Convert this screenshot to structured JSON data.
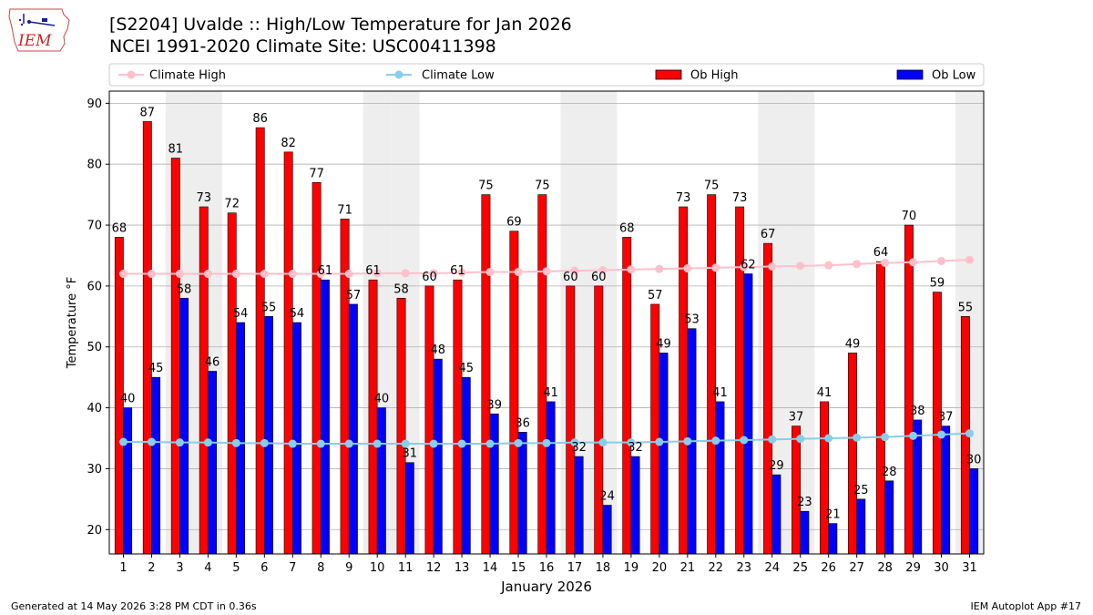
{
  "header": {
    "title_line1": "[S2204] Uvalde :: High/Low Temperature for Jan 2026",
    "title_line2": "NCEI 1991-2020 Climate Site: USC00411398",
    "logo_text": "IEM"
  },
  "footer": {
    "generated": "Generated at 14 May 2026 3:28 PM CDT in 0.36s",
    "app": "IEM Autoplot App #17"
  },
  "colors": {
    "ob_high": "#ff0000",
    "ob_low": "#0000ff",
    "climate_high": "#ffc0cb",
    "climate_low": "#87ceeb",
    "weekend_shade": "#eeeeee",
    "grid": "#b0b0b0"
  },
  "chart_data": {
    "type": "bar",
    "xlabel": "January 2026",
    "ylabel": "Temperature °F",
    "ylim": [
      16,
      92
    ],
    "yticks": [
      20,
      30,
      40,
      50,
      60,
      70,
      80,
      90
    ],
    "grid": "horizontal",
    "legend_position": "top",
    "categories": [
      "1",
      "2",
      "3",
      "4",
      "5",
      "6",
      "7",
      "8",
      "9",
      "10",
      "11",
      "12",
      "13",
      "14",
      "15",
      "16",
      "17",
      "18",
      "19",
      "20",
      "21",
      "22",
      "23",
      "24",
      "25",
      "26",
      "27",
      "28",
      "29",
      "30",
      "31"
    ],
    "shaded_days": [
      3,
      4,
      10,
      11,
      17,
      18,
      24,
      25,
      31
    ],
    "series": [
      {
        "name": "Ob High",
        "kind": "bar",
        "values": [
          68,
          87,
          81,
          73,
          72,
          86,
          82,
          77,
          71,
          61,
          58,
          60,
          61,
          75,
          69,
          75,
          60,
          60,
          68,
          57,
          73,
          75,
          73,
          67,
          37,
          41,
          49,
          64,
          70,
          59,
          55
        ]
      },
      {
        "name": "Ob Low",
        "kind": "bar",
        "values": [
          40,
          45,
          58,
          46,
          54,
          55,
          54,
          61,
          57,
          40,
          31,
          48,
          45,
          39,
          36,
          41,
          32,
          24,
          32,
          49,
          53,
          41,
          62,
          29,
          23,
          21,
          25,
          28,
          38,
          37,
          30
        ]
      },
      {
        "name": "Climate High",
        "kind": "line",
        "values": [
          62.0,
          62.0,
          62.0,
          62.0,
          62.0,
          62.0,
          62.0,
          62.0,
          62.0,
          62.1,
          62.1,
          62.1,
          62.2,
          62.3,
          62.3,
          62.4,
          62.5,
          62.6,
          62.7,
          62.8,
          62.9,
          63.0,
          63.1,
          63.2,
          63.3,
          63.4,
          63.6,
          63.8,
          63.9,
          64.1,
          64.3
        ]
      },
      {
        "name": "Climate Low",
        "kind": "line",
        "values": [
          34.4,
          34.4,
          34.3,
          34.3,
          34.2,
          34.2,
          34.1,
          34.1,
          34.1,
          34.1,
          34.1,
          34.1,
          34.1,
          34.1,
          34.2,
          34.2,
          34.3,
          34.3,
          34.3,
          34.4,
          34.5,
          34.6,
          34.7,
          34.8,
          34.9,
          35.0,
          35.1,
          35.2,
          35.4,
          35.6,
          35.8
        ]
      }
    ]
  }
}
